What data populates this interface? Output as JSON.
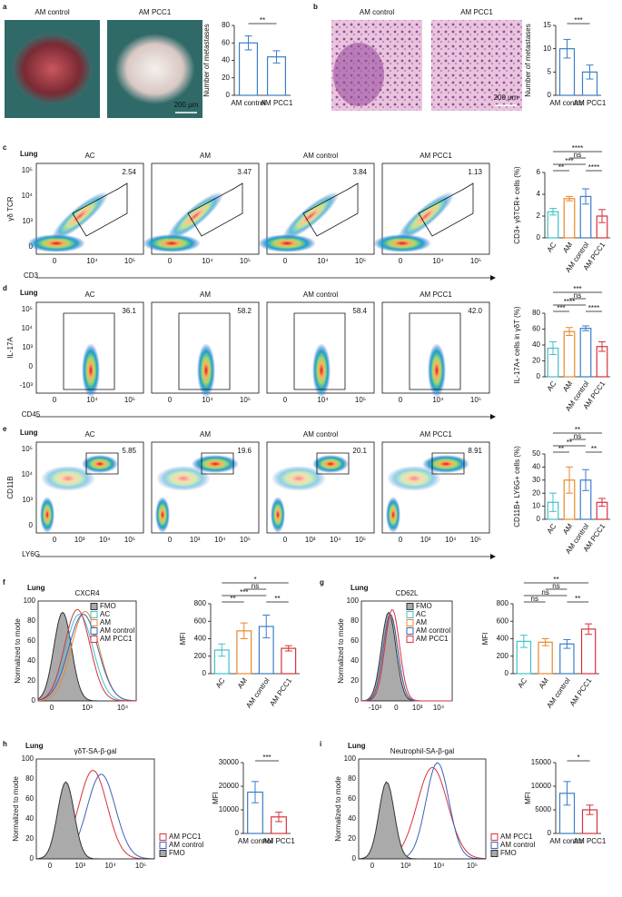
{
  "panels": [
    "a",
    "b",
    "c",
    "d",
    "e",
    "f",
    "g",
    "h",
    "i"
  ],
  "photos": [
    {
      "images": [
        "AM control",
        "AM PCC1"
      ],
      "scale": "200 μm"
    },
    {
      "images": [
        "AM control",
        "AM PCC1"
      ],
      "scale": "200 μm"
    }
  ],
  "flow": [
    {
      "tag": "Lung",
      "xlabel": "CD3",
      "ylabel": "γδ TCR",
      "yticklabels": [
        "10⁵",
        "10⁴",
        "10³",
        "0"
      ],
      "xticklabels": [
        "0",
        "10⁴",
        "10⁵"
      ],
      "plots": [
        {
          "title": "AC",
          "gate": "2.54"
        },
        {
          "title": "AM",
          "gate": "3.47"
        },
        {
          "title": "AM control",
          "gate": "3.84"
        },
        {
          "title": "AM PCC1",
          "gate": "1.13"
        }
      ]
    },
    {
      "tag": "Lung",
      "xlabel": "CD45",
      "ylabel": "IL-17A",
      "yticklabels": [
        "10⁵",
        "10⁴",
        "10³",
        "0",
        "-10³"
      ],
      "xticklabels": [
        "0",
        "10⁴",
        "10⁵"
      ],
      "plots": [
        {
          "title": "AC",
          "gate": "36.1"
        },
        {
          "title": "AM",
          "gate": "58.2"
        },
        {
          "title": "AM control",
          "gate": "58.4"
        },
        {
          "title": "AM PCC1",
          "gate": "42.0"
        }
      ]
    },
    {
      "tag": "Lung",
      "xlabel": "LY6G",
      "ylabel": "CD11B",
      "yticklabels": [
        "10⁵",
        "10⁴",
        "10³",
        "0"
      ],
      "xticklabels": [
        "0",
        "10³",
        "10⁴",
        "10⁵"
      ],
      "plots": [
        {
          "title": "AC",
          "gate": "5.85"
        },
        {
          "title": "AM",
          "gate": "19.6"
        },
        {
          "title": "AM control",
          "gate": "20.1"
        },
        {
          "title": "AM PCC1",
          "gate": "8.91"
        }
      ]
    }
  ],
  "histograms": [
    {
      "tag": "Lung",
      "title": "CXCR4",
      "ylabel": "Normalized to mode",
      "yticklabels": [
        "100",
        "80",
        "60",
        "40",
        "20",
        "0"
      ],
      "xticklabels": [
        "0",
        "10³",
        "10⁴"
      ],
      "legend": [
        "FMO",
        "AC",
        "AM",
        "AM control",
        "AM PCC1"
      ],
      "colors": [
        "#aaaaaa",
        "#3fc1c9",
        "#e8892b",
        "#3a62b8",
        "#d6323c"
      ]
    },
    {
      "tag": "Lung",
      "title": "CD62L",
      "ylabel": "Normalized to mode",
      "yticklabels": [
        "100",
        "80",
        "60",
        "40",
        "20",
        "0"
      ],
      "xticklabels": [
        "-10³",
        "0",
        "10³",
        "10⁴"
      ],
      "legend": [
        "FMO",
        "AC",
        "AM",
        "AM control",
        "AM PCC1"
      ],
      "colors": [
        "#aaaaaa",
        "#3fc1c9",
        "#e8892b",
        "#3a62b8",
        "#d6323c"
      ]
    },
    {
      "tag": "Lung",
      "title": "γδT-SA-β-gal",
      "ylabel": "Normalized to mode",
      "yticklabels": [
        "100",
        "80",
        "60",
        "40",
        "20",
        "0"
      ],
      "xticklabels": [
        "0",
        "10³",
        "10⁴",
        "10⁵"
      ],
      "legend": [
        "AM PCC1",
        "AM control",
        "FMO"
      ],
      "colors": [
        "#d6323c",
        "#3a62b8",
        "#aaaaaa"
      ]
    },
    {
      "tag": "Lung",
      "title": "Neutrophil-SA-β-gal",
      "ylabel": "Normalized to mode",
      "yticklabels": [
        "100",
        "80",
        "60",
        "40",
        "20",
        "0"
      ],
      "xticklabels": [
        "0",
        "10³",
        "10⁴",
        "10⁵"
      ],
      "legend": [
        "AM PCC1",
        "AM control",
        "FMO"
      ],
      "colors": [
        "#d6323c",
        "#3a62b8",
        "#aaaaaa"
      ]
    }
  ],
  "chart_data": [
    {
      "type": "bar",
      "ylabel": "Number of metastases",
      "categories": [
        "AM control",
        "AM PCC1"
      ],
      "values": [
        60,
        44
      ],
      "errors": [
        8,
        7
      ],
      "colors": [
        "#3a7dc9",
        "#3a7dc9"
      ],
      "ylim": [
        0,
        80
      ],
      "yticks": [
        0,
        20,
        40,
        60,
        80
      ],
      "annotations": [
        "**"
      ]
    },
    {
      "type": "bar",
      "ylabel": "Number of metastases",
      "categories": [
        "AM control",
        "AM PCC1"
      ],
      "values": [
        10,
        5
      ],
      "errors": [
        2,
        1.5
      ],
      "colors": [
        "#3a7dc9",
        "#3a7dc9"
      ],
      "ylim": [
        0,
        15
      ],
      "yticks": [
        0,
        5,
        10,
        15
      ],
      "annotations": [
        "***"
      ]
    },
    {
      "type": "bar",
      "ylabel": "CD3+ γδTCR+ cells (%)",
      "categories": [
        "AC",
        "AM",
        "AM control",
        "AM PCC1"
      ],
      "values": [
        2.4,
        3.6,
        3.8,
        2.0
      ],
      "errors": [
        0.3,
        0.2,
        0.7,
        0.6
      ],
      "colors": [
        "#3fc1c9",
        "#e8892b",
        "#3a7dc9",
        "#d6323c"
      ],
      "ylim": [
        0,
        6
      ],
      "yticks": [
        0,
        2,
        4,
        6
      ],
      "annotations": [
        "****",
        "ns",
        "***",
        "**",
        "****"
      ]
    },
    {
      "type": "bar",
      "ylabel": "IL-17A+ cells in γδT (%)",
      "categories": [
        "AC",
        "AM",
        "AM control",
        "AM PCC1"
      ],
      "values": [
        36,
        57,
        61,
        38
      ],
      "errors": [
        8,
        5,
        3,
        6
      ],
      "colors": [
        "#3fc1c9",
        "#e8892b",
        "#3a7dc9",
        "#d6323c"
      ],
      "ylim": [
        0,
        80
      ],
      "yticks": [
        0,
        20,
        40,
        60,
        80
      ],
      "annotations": [
        "***",
        "ns",
        "****",
        "***",
        "****"
      ]
    },
    {
      "type": "bar",
      "ylabel": "CD11B+ LY6G+ cells (%)",
      "categories": [
        "AC",
        "AM",
        "AM control",
        "AM PCC1"
      ],
      "values": [
        13,
        30,
        30,
        13
      ],
      "errors": [
        7,
        10,
        8,
        3
      ],
      "colors": [
        "#3fc1c9",
        "#e8892b",
        "#3a7dc9",
        "#d6323c"
      ],
      "ylim": [
        0,
        50
      ],
      "yticks": [
        0,
        10,
        20,
        30,
        40,
        50
      ],
      "annotations": [
        "**",
        "ns",
        "**",
        "**",
        "**"
      ]
    },
    {
      "type": "bar",
      "ylabel": "MFI",
      "categories": [
        "AC",
        "AM",
        "AM control",
        "AM PCC1"
      ],
      "values": [
        270,
        490,
        540,
        290
      ],
      "errors": [
        70,
        90,
        130,
        30
      ],
      "colors": [
        "#3fc1c9",
        "#e8892b",
        "#3a7dc9",
        "#d6323c"
      ],
      "ylim": [
        0,
        800
      ],
      "yticks": [
        0,
        200,
        400,
        600,
        800
      ],
      "annotations": [
        "*",
        "ns",
        "***",
        "**",
        "**"
      ]
    },
    {
      "type": "bar",
      "ylabel": "MFI",
      "categories": [
        "AC",
        "AM",
        "AM control",
        "AM PCC1"
      ],
      "values": [
        370,
        360,
        340,
        510
      ],
      "errors": [
        70,
        40,
        50,
        60
      ],
      "colors": [
        "#3fc1c9",
        "#e8892b",
        "#3a7dc9",
        "#d6323c"
      ],
      "ylim": [
        0,
        800
      ],
      "yticks": [
        0,
        200,
        400,
        600,
        800
      ],
      "annotations": [
        "**",
        "ns",
        "ns",
        "ns",
        "**"
      ]
    },
    {
      "type": "bar",
      "ylabel": "MFI",
      "categories": [
        "AM control",
        "AM PCC1"
      ],
      "values": [
        17500,
        7000
      ],
      "errors": [
        4500,
        2000
      ],
      "colors": [
        "#3a7dc9",
        "#d6323c"
      ],
      "ylim": [
        0,
        30000
      ],
      "yticks": [
        0,
        10000,
        20000,
        30000
      ],
      "annotations": [
        "***"
      ]
    },
    {
      "type": "bar",
      "ylabel": "MFI",
      "categories": [
        "AM control",
        "AM PCC1"
      ],
      "values": [
        8500,
        5000
      ],
      "errors": [
        2500,
        1000
      ],
      "colors": [
        "#3a7dc9",
        "#d6323c"
      ],
      "ylim": [
        0,
        15000
      ],
      "yticks": [
        0,
        5000,
        10000,
        15000
      ],
      "annotations": [
        "*"
      ]
    }
  ]
}
